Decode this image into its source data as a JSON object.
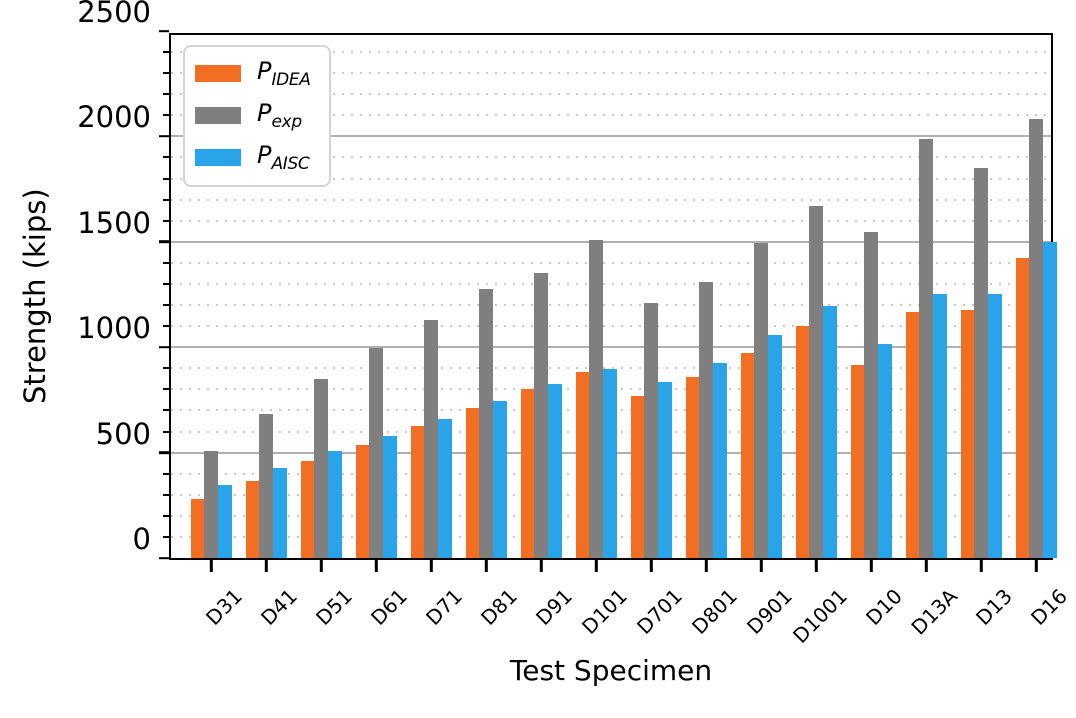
{
  "chart_data": {
    "type": "bar",
    "title": "",
    "xlabel": "Test Specimen",
    "ylabel": "Strength (kips)",
    "ylim": [
      0,
      2500
    ],
    "ytick_major_step": 500,
    "ytick_minor_step": 100,
    "ytick_labels": [
      "0",
      "500",
      "1000",
      "1500",
      "2000",
      "2500"
    ],
    "grid": {
      "major": "solid",
      "minor": "dotted",
      "orientation": "horizontal"
    },
    "legend_position": "upper-left",
    "categories": [
      "D31",
      "D41",
      "D51",
      "D61",
      "D71",
      "D81",
      "D91",
      "D101",
      "D701",
      "D801",
      "D901",
      "D1001",
      "D10",
      "D13A",
      "D13",
      "D16"
    ],
    "series": [
      {
        "name": "P_IDEA",
        "label_base": "P",
        "label_sub": "IDEA",
        "color": "#F26E22",
        "values": [
          280,
          365,
          458,
          537,
          625,
          710,
          802,
          882,
          770,
          857,
          971,
          1102,
          916,
          1167,
          1175,
          1421
        ]
      },
      {
        "name": "P_exp",
        "label_base": "P",
        "label_sub": "exp",
        "color": "#7F7F7F",
        "values": [
          510,
          684,
          850,
          994,
          1128,
          1277,
          1354,
          1508,
          1210,
          1311,
          1494,
          1668,
          1546,
          1988,
          1852,
          2083
        ]
      },
      {
        "name": "P_AISC",
        "label_base": "P",
        "label_sub": "AISC",
        "color": "#29A4E9",
        "values": [
          345,
          427,
          507,
          581,
          660,
          745,
          826,
          898,
          836,
          924,
          1056,
          1194,
          1016,
          1254,
          1254,
          1498
        ]
      }
    ]
  },
  "colors": {
    "grid_major": "#B0B0B0",
    "grid_minor": "#C8C8C8",
    "axis": "#000000",
    "background": "#FFFFFF",
    "legend_border": "#D4D4D4"
  }
}
